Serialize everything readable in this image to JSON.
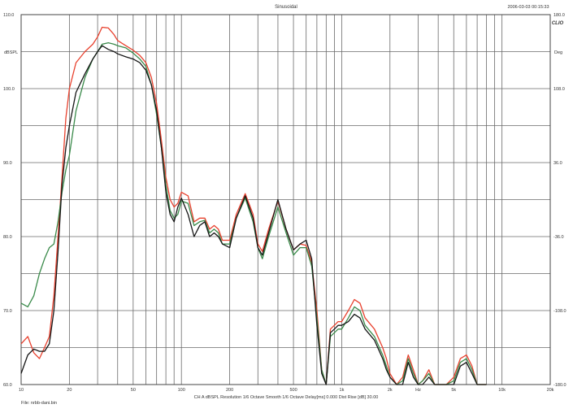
{
  "chart_data": {
    "type": "line",
    "title": "Sinusoidal",
    "timestamp": "2006-03-03 00:15:33",
    "logo": "CLIO",
    "ylabel_left": "dBSPL",
    "ylabel_right": "Deg",
    "footer": "CH A   dBSPL   Resolution 1/6 Octave   Smooth 1/6 Octave   Delay[ms] 0.000   Dist Rise [dB] 30.00",
    "file_label": "File: nrbb-dani.bin",
    "x_scale": "log",
    "xlim": [
      10,
      20000
    ],
    "ylim": [
      60,
      110
    ],
    "ylim_right": [
      -180,
      180
    ],
    "y_ticks": [
      {
        "value": 110,
        "label": "110.0"
      },
      {
        "value": 100,
        "label": "100.0"
      },
      {
        "value": 90,
        "label": "90.0"
      },
      {
        "value": 80,
        "label": "80.0"
      },
      {
        "value": 70,
        "label": "70.0"
      },
      {
        "value": 60,
        "label": "60.0"
      }
    ],
    "y_ticks_right": [
      {
        "value": 180,
        "label": "180.0"
      },
      {
        "value": 108,
        "label": "108.0"
      },
      {
        "value": 36,
        "label": "36.0"
      },
      {
        "value": -36,
        "label": "-36.0"
      },
      {
        "value": -108,
        "label": "-108.0"
      },
      {
        "value": -180,
        "label": "-180.0"
      }
    ],
    "x_ticks": [
      {
        "value": 10,
        "label": "10"
      },
      {
        "value": 20,
        "label": "20"
      },
      {
        "value": 50,
        "label": "50"
      },
      {
        "value": 100,
        "label": "100"
      },
      {
        "value": 200,
        "label": "200"
      },
      {
        "value": 500,
        "label": "500"
      },
      {
        "value": 1000,
        "label": "1k"
      },
      {
        "value": 2000,
        "label": "2k"
      },
      {
        "value": 3000,
        "label": "Hz"
      },
      {
        "value": 5000,
        "label": "5k"
      },
      {
        "value": 10000,
        "label": "10k"
      },
      {
        "value": 20000,
        "label": "20k"
      }
    ],
    "grid": true,
    "series": [
      {
        "color": "#e8412e",
        "points": [
          [
            10,
            65.5
          ],
          [
            11,
            66.5
          ],
          [
            12,
            64.3
          ],
          [
            13,
            63.5
          ],
          [
            14,
            65
          ],
          [
            15,
            66.5
          ],
          [
            16,
            72
          ],
          [
            17,
            80
          ],
          [
            18,
            88
          ],
          [
            19,
            96
          ],
          [
            20,
            100
          ],
          [
            22,
            103.5
          ],
          [
            25,
            105
          ],
          [
            28,
            106
          ],
          [
            30,
            107
          ],
          [
            32,
            108.3
          ],
          [
            35,
            108.2
          ],
          [
            38,
            107.3
          ],
          [
            40,
            106.5
          ],
          [
            45,
            105.8
          ],
          [
            50,
            105.2
          ],
          [
            55,
            104.5
          ],
          [
            60,
            103.5
          ],
          [
            65,
            101.5
          ],
          [
            70,
            98
          ],
          [
            75,
            93
          ],
          [
            80,
            88
          ],
          [
            85,
            85
          ],
          [
            90,
            84
          ],
          [
            95,
            84.5
          ],
          [
            100,
            86
          ],
          [
            110,
            85.5
          ],
          [
            120,
            82
          ],
          [
            130,
            82.5
          ],
          [
            140,
            82.5
          ],
          [
            150,
            81
          ],
          [
            160,
            81.5
          ],
          [
            170,
            81
          ],
          [
            180,
            79.5
          ],
          [
            200,
            79.5
          ],
          [
            220,
            83
          ],
          [
            250,
            85.8
          ],
          [
            280,
            83
          ],
          [
            300,
            79
          ],
          [
            320,
            78
          ],
          [
            350,
            81
          ],
          [
            400,
            84.8
          ],
          [
            450,
            81
          ],
          [
            500,
            78.2
          ],
          [
            550,
            79
          ],
          [
            600,
            78.8
          ],
          [
            650,
            76.5
          ],
          [
            700,
            70
          ],
          [
            750,
            62
          ],
          [
            800,
            60
          ],
          [
            850,
            67.5
          ],
          [
            900,
            68
          ],
          [
            950,
            68.5
          ],
          [
            1000,
            68.5
          ],
          [
            1100,
            70
          ],
          [
            1200,
            71.5
          ],
          [
            1300,
            71
          ],
          [
            1400,
            69
          ],
          [
            1600,
            67.5
          ],
          [
            1800,
            65
          ],
          [
            1900,
            63.5
          ],
          [
            2000,
            61.5
          ],
          [
            2200,
            60
          ],
          [
            2400,
            61
          ],
          [
            2600,
            64
          ],
          [
            2800,
            62
          ],
          [
            3000,
            60
          ],
          [
            3200,
            60.5
          ],
          [
            3500,
            62
          ],
          [
            3800,
            60
          ],
          [
            4000,
            59.5
          ],
          [
            4500,
            60
          ],
          [
            5000,
            61
          ],
          [
            5500,
            63.5
          ],
          [
            6000,
            64
          ],
          [
            6500,
            62.5
          ],
          [
            7000,
            60
          ],
          [
            8000,
            59.5
          ]
        ]
      },
      {
        "color": "#3a8a4a",
        "points": [
          [
            10,
            71
          ],
          [
            11,
            70.5
          ],
          [
            12,
            72
          ],
          [
            13,
            75
          ],
          [
            14,
            77
          ],
          [
            15,
            78.5
          ],
          [
            16,
            79
          ],
          [
            17,
            82
          ],
          [
            18,
            86
          ],
          [
            19,
            89
          ],
          [
            20,
            91
          ],
          [
            22,
            97
          ],
          [
            25,
            101.5
          ],
          [
            28,
            104
          ],
          [
            30,
            105
          ],
          [
            32,
            106
          ],
          [
            35,
            106.2
          ],
          [
            38,
            106
          ],
          [
            40,
            105.8
          ],
          [
            45,
            105.5
          ],
          [
            50,
            104.8
          ],
          [
            55,
            104
          ],
          [
            60,
            103
          ],
          [
            65,
            100.5
          ],
          [
            70,
            96.5
          ],
          [
            75,
            92
          ],
          [
            80,
            87
          ],
          [
            85,
            83.5
          ],
          [
            90,
            82.5
          ],
          [
            95,
            83
          ],
          [
            100,
            84.8
          ],
          [
            110,
            84.5
          ],
          [
            120,
            81.5
          ],
          [
            130,
            82
          ],
          [
            140,
            82.2
          ],
          [
            150,
            80.5
          ],
          [
            160,
            81
          ],
          [
            170,
            80.5
          ],
          [
            180,
            79
          ],
          [
            200,
            79
          ],
          [
            220,
            82.5
          ],
          [
            250,
            85.2
          ],
          [
            280,
            82
          ],
          [
            300,
            78.5
          ],
          [
            320,
            77
          ],
          [
            350,
            80
          ],
          [
            400,
            84
          ],
          [
            450,
            80.5
          ],
          [
            500,
            77.5
          ],
          [
            550,
            78.5
          ],
          [
            600,
            78.5
          ],
          [
            650,
            76
          ],
          [
            700,
            69
          ],
          [
            750,
            62
          ],
          [
            800,
            60
          ],
          [
            850,
            66.5
          ],
          [
            900,
            67
          ],
          [
            950,
            67.5
          ],
          [
            1000,
            67.5
          ],
          [
            1100,
            69
          ],
          [
            1200,
            70.5
          ],
          [
            1300,
            70
          ],
          [
            1400,
            68
          ],
          [
            1600,
            66.5
          ],
          [
            1800,
            64
          ],
          [
            1900,
            62.5
          ],
          [
            2000,
            61
          ],
          [
            2200,
            60
          ],
          [
            2400,
            60.5
          ],
          [
            2600,
            63.5
          ],
          [
            2800,
            61.5
          ],
          [
            3000,
            60
          ],
          [
            3200,
            60.5
          ],
          [
            3500,
            61.5
          ],
          [
            3800,
            60
          ],
          [
            4000,
            59.5
          ],
          [
            4500,
            60
          ],
          [
            5000,
            60.5
          ],
          [
            5500,
            63
          ],
          [
            6000,
            63.5
          ],
          [
            6500,
            62
          ],
          [
            7000,
            60
          ],
          [
            8000,
            59.5
          ]
        ]
      },
      {
        "color": "#151515",
        "points": [
          [
            10,
            61.5
          ],
          [
            11,
            64
          ],
          [
            12,
            64.8
          ],
          [
            13,
            64.5
          ],
          [
            14,
            64.5
          ],
          [
            15,
            65.5
          ],
          [
            16,
            70
          ],
          [
            17,
            78
          ],
          [
            18,
            87
          ],
          [
            19,
            92
          ],
          [
            20,
            95
          ],
          [
            22,
            99.5
          ],
          [
            25,
            102
          ],
          [
            28,
            104
          ],
          [
            30,
            105
          ],
          [
            32,
            105.8
          ],
          [
            35,
            105.3
          ],
          [
            38,
            105
          ],
          [
            40,
            104.7
          ],
          [
            45,
            104.3
          ],
          [
            50,
            104
          ],
          [
            55,
            103.5
          ],
          [
            60,
            102.5
          ],
          [
            65,
            100.5
          ],
          [
            70,
            97
          ],
          [
            75,
            92
          ],
          [
            80,
            86
          ],
          [
            85,
            83
          ],
          [
            90,
            82
          ],
          [
            95,
            84
          ],
          [
            100,
            85.2
          ],
          [
            110,
            83
          ],
          [
            120,
            80
          ],
          [
            130,
            81.5
          ],
          [
            140,
            82
          ],
          [
            150,
            80
          ],
          [
            160,
            80.5
          ],
          [
            170,
            80
          ],
          [
            180,
            79
          ],
          [
            200,
            78.5
          ],
          [
            220,
            82.5
          ],
          [
            250,
            85.5
          ],
          [
            280,
            82.5
          ],
          [
            300,
            78.5
          ],
          [
            320,
            77.5
          ],
          [
            350,
            80.5
          ],
          [
            400,
            85
          ],
          [
            450,
            81
          ],
          [
            500,
            78.2
          ],
          [
            550,
            79
          ],
          [
            600,
            79.5
          ],
          [
            650,
            77
          ],
          [
            700,
            68
          ],
          [
            750,
            61.5
          ],
          [
            800,
            60
          ],
          [
            850,
            67
          ],
          [
            900,
            67.5
          ],
          [
            950,
            68
          ],
          [
            1000,
            68
          ],
          [
            1100,
            68.5
          ],
          [
            1200,
            69.5
          ],
          [
            1300,
            69
          ],
          [
            1400,
            67.5
          ],
          [
            1600,
            66
          ],
          [
            1800,
            63.5
          ],
          [
            1900,
            62
          ],
          [
            2000,
            61
          ],
          [
            2200,
            60
          ],
          [
            2400,
            60
          ],
          [
            2600,
            63
          ],
          [
            2800,
            61
          ],
          [
            3000,
            60
          ],
          [
            3200,
            60
          ],
          [
            3500,
            61
          ],
          [
            3800,
            60
          ],
          [
            4000,
            59.5
          ],
          [
            4500,
            60
          ],
          [
            5000,
            60
          ],
          [
            5500,
            62.5
          ],
          [
            6000,
            63
          ],
          [
            6500,
            61.5
          ],
          [
            7000,
            60
          ],
          [
            8000,
            59.5
          ]
        ]
      }
    ]
  }
}
